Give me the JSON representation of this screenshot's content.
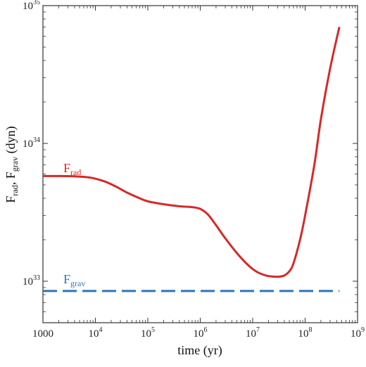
{
  "chart_data": {
    "type": "line",
    "xlabel": "time (yr)",
    "ylabel": {
      "base1": "F",
      "sub1": "rad",
      "sep": ", F",
      "sub2": "grav",
      "units": " (dyn)"
    },
    "x_scale": "log",
    "y_scale": "log",
    "xlim": [
      1000,
      1000000000
    ],
    "ylim": [
      5e+32,
      1e+35
    ],
    "x_ticks": [
      {
        "value": 1000,
        "base": "1000",
        "exp": ""
      },
      {
        "value": 10000,
        "base": "10",
        "exp": "4"
      },
      {
        "value": 100000,
        "base": "10",
        "exp": "5"
      },
      {
        "value": 1000000,
        "base": "10",
        "exp": "6"
      },
      {
        "value": 10000000,
        "base": "10",
        "exp": "7"
      },
      {
        "value": 100000000,
        "base": "10",
        "exp": "8"
      },
      {
        "value": 1000000000,
        "base": "10",
        "exp": "9"
      }
    ],
    "y_ticks": [
      {
        "value": 1e+33,
        "base": "10",
        "exp": "33"
      },
      {
        "value": 1e+34,
        "base": "10",
        "exp": "34"
      },
      {
        "value": 1e+35,
        "base": "10",
        "exp": "35"
      }
    ],
    "grid": false,
    "series": [
      {
        "label_base": "F",
        "label_sub": "rad",
        "color": "#d42a2a",
        "style": "solid",
        "x": [
          1000,
          2000,
          4000,
          8000,
          15000,
          25000,
          40000,
          70000,
          100000,
          200000,
          400000,
          700000,
          1000000,
          1400000,
          2000000,
          3000000,
          5000000,
          8000000,
          12000000,
          18000000,
          25000000,
          32000000,
          40000000,
          50000000,
          60000000,
          80000000,
          100000000,
          150000000,
          200000000,
          300000000,
          450000000
        ],
        "y": [
          5.8e+33,
          5.8e+33,
          5.77e+33,
          5.65e+33,
          5.3e+33,
          4.85e+33,
          4.4e+33,
          4e+33,
          3.8e+33,
          3.62e+33,
          3.5e+33,
          3.45e+33,
          3.35e+33,
          3.05e+33,
          2.55e+33,
          2.05e+33,
          1.6e+33,
          1.32e+33,
          1.17e+33,
          1.1e+33,
          1.08e+33,
          1.08e+33,
          1.1e+33,
          1.18e+33,
          1.35e+33,
          2e+33,
          3e+33,
          7e+33,
          1.5e+34,
          3.5e+34,
          7e+34
        ]
      },
      {
        "label_base": "F",
        "label_sub": "grav",
        "color": "#2f75b5",
        "style": "dashed",
        "x": [
          1000,
          450000000
        ],
        "y": [
          8.5e+32,
          8.5e+32
        ]
      }
    ]
  }
}
